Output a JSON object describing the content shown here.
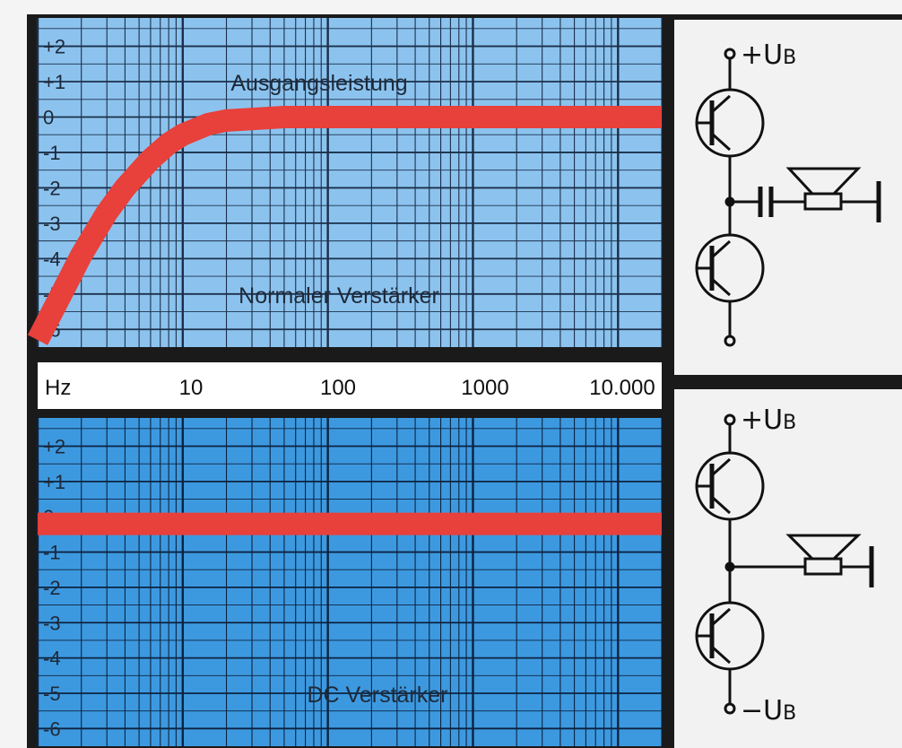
{
  "chart_data": [
    {
      "type": "line",
      "annotation_top": "Ausgangsleistung",
      "annotation_bottom": "Normaler Verstärker",
      "x_tick_labels": [
        "Hz",
        "10",
        "100",
        "1000",
        "10.000"
      ],
      "x_scale": "log",
      "xlim": [
        1,
        20000
      ],
      "y_tick_labels": [
        "+2",
        "+1",
        "0",
        "-1",
        "-2",
        "-3",
        "-4",
        "-5",
        "-6"
      ],
      "ylim": [
        -6.5,
        2.8
      ],
      "series": [
        {
          "x": [
            1,
            1.5,
            2,
            3,
            4,
            6,
            8,
            10,
            15,
            20,
            50,
            100,
            1000,
            10000,
            20000
          ],
          "y": [
            -6.3,
            -4.9,
            -3.9,
            -2.7,
            -2.0,
            -1.2,
            -0.75,
            -0.5,
            -0.2,
            -0.1,
            0,
            0,
            0,
            0,
            0
          ]
        }
      ],
      "grid": true,
      "colors": {
        "background": "#8cc3ee",
        "line": "#e8403a",
        "grid": "#1b2f4a"
      }
    },
    {
      "type": "line",
      "annotation_bottom": "DC Verstärker",
      "x_tick_labels": [
        "Hz",
        "10",
        "100",
        "1000",
        "10.000"
      ],
      "x_scale": "log",
      "xlim": [
        1,
        20000
      ],
      "y_tick_labels": [
        "+2",
        "+1",
        "0",
        "-1",
        "-2",
        "-3",
        "-4",
        "-5",
        "-6"
      ],
      "ylim": [
        -6.5,
        2.8
      ],
      "series": [
        {
          "x": [
            1,
            20000
          ],
          "y": [
            -0.2,
            -0.2
          ]
        }
      ],
      "grid": true,
      "colors": {
        "background": "#3d99df",
        "line": "#e8403a",
        "grid": "#0d2340"
      }
    }
  ],
  "schematics": {
    "top": {
      "supply_plus": "+U",
      "supply_plus_sub": "B"
    },
    "bottom": {
      "supply_plus": "+U",
      "supply_plus_sub": "B",
      "supply_minus": "−U",
      "supply_minus_sub": "B"
    }
  }
}
